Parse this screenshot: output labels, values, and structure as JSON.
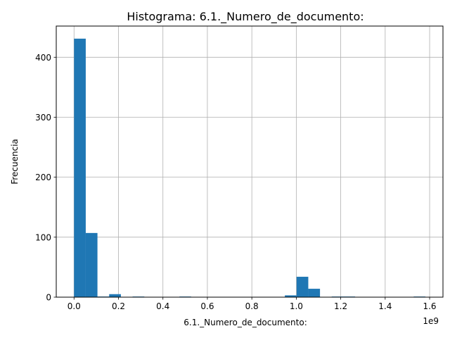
{
  "chart_data": {
    "type": "bar",
    "title": "Histograma: 6.1._Numero_de_documento:",
    "xlabel": "6.1._Numero_de_documento:",
    "ylabel": "Frecuencia",
    "x_offset_label": "1e9",
    "xlim": [
      -0.08,
      1.66
    ],
    "ylim": [
      0,
      452
    ],
    "grid": true,
    "bar_color": "#1f77b4",
    "x_ticks": [
      {
        "value": 0.0,
        "label": "0.0"
      },
      {
        "value": 0.2,
        "label": "0.2"
      },
      {
        "value": 0.4,
        "label": "0.4"
      },
      {
        "value": 0.6,
        "label": "0.6"
      },
      {
        "value": 0.8,
        "label": "0.8"
      },
      {
        "value": 1.0,
        "label": "1.0"
      },
      {
        "value": 1.2,
        "label": "1.2"
      },
      {
        "value": 1.4,
        "label": "1.4"
      },
      {
        "value": 1.6,
        "label": "1.6"
      }
    ],
    "y_ticks": [
      {
        "value": 0,
        "label": "0"
      },
      {
        "value": 100,
        "label": "100"
      },
      {
        "value": 200,
        "label": "200"
      },
      {
        "value": 300,
        "label": "300"
      },
      {
        "value": 400,
        "label": "400"
      }
    ],
    "bin_width": 0.0527,
    "bins": [
      {
        "start": 0.0,
        "count": 431
      },
      {
        "start": 0.0527,
        "count": 107
      },
      {
        "start": 0.1054,
        "count": 1
      },
      {
        "start": 0.1581,
        "count": 5
      },
      {
        "start": 0.2108,
        "count": 0
      },
      {
        "start": 0.2635,
        "count": 1
      },
      {
        "start": 0.3162,
        "count": 0
      },
      {
        "start": 0.3689,
        "count": 0
      },
      {
        "start": 0.4216,
        "count": 0
      },
      {
        "start": 0.4743,
        "count": 1
      },
      {
        "start": 0.527,
        "count": 0
      },
      {
        "start": 0.5797,
        "count": 0
      },
      {
        "start": 0.6324,
        "count": 0
      },
      {
        "start": 0.6851,
        "count": 0
      },
      {
        "start": 0.7378,
        "count": 0
      },
      {
        "start": 0.7905,
        "count": 0
      },
      {
        "start": 0.8432,
        "count": 0
      },
      {
        "start": 0.8959,
        "count": 0
      },
      {
        "start": 0.9486,
        "count": 3
      },
      {
        "start": 1.0013,
        "count": 34
      },
      {
        "start": 1.054,
        "count": 14
      },
      {
        "start": 1.1067,
        "count": 0
      },
      {
        "start": 1.1594,
        "count": 1
      },
      {
        "start": 1.2121,
        "count": 1
      },
      {
        "start": 1.2648,
        "count": 0
      },
      {
        "start": 1.3175,
        "count": 0
      },
      {
        "start": 1.3702,
        "count": 0
      },
      {
        "start": 1.4229,
        "count": 0
      },
      {
        "start": 1.4756,
        "count": 0
      },
      {
        "start": 1.5283,
        "count": 1
      }
    ]
  }
}
